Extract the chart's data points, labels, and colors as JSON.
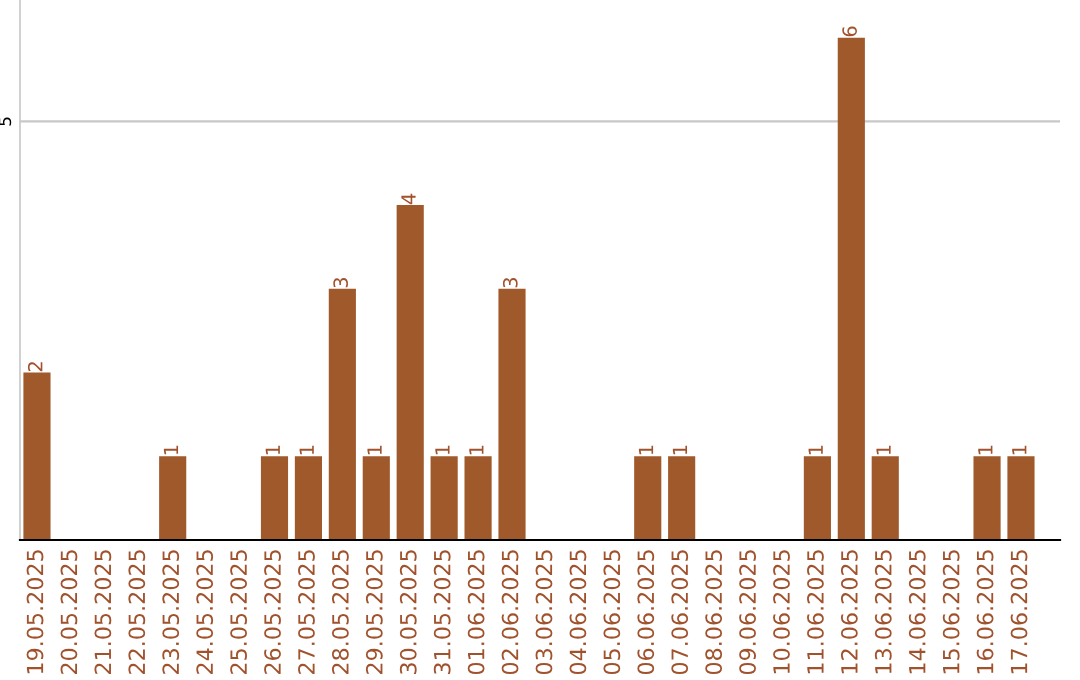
{
  "chart_data": {
    "type": "bar",
    "categories": [
      "19.05.2025",
      "20.05.2025",
      "21.05.2025",
      "22.05.2025",
      "23.05.2025",
      "24.05.2025",
      "25.05.2025",
      "26.05.2025",
      "27.05.2025",
      "28.05.2025",
      "29.05.2025",
      "30.05.2025",
      "31.05.2025",
      "01.06.2025",
      "02.06.2025",
      "03.06.2025",
      "04.06.2025",
      "05.06.2025",
      "06.06.2025",
      "07.06.2025",
      "08.06.2025",
      "09.06.2025",
      "10.06.2025",
      "11.06.2025",
      "12.06.2025",
      "13.06.2025",
      "14.06.2025",
      "15.06.2025",
      "16.06.2025",
      "17.06.2025"
    ],
    "values": [
      2,
      0,
      0,
      0,
      1,
      0,
      0,
      1,
      1,
      3,
      1,
      4,
      1,
      1,
      3,
      0,
      0,
      0,
      1,
      1,
      0,
      0,
      0,
      1,
      6,
      1,
      0,
      0,
      1,
      1
    ],
    "value_labels": [
      "2",
      null,
      null,
      null,
      "1",
      null,
      null,
      "1",
      "1",
      "3",
      "1",
      "4",
      "1",
      "1",
      "3",
      null,
      null,
      null,
      "1",
      "1",
      null,
      null,
      null,
      "1",
      "6",
      "1",
      null,
      null,
      "1",
      "1"
    ],
    "color": "#a0592a",
    "ylim": [
      0,
      6.45
    ],
    "yticks": [
      {
        "value": 0,
        "label": null
      },
      5
    ],
    "grid": "y"
  }
}
